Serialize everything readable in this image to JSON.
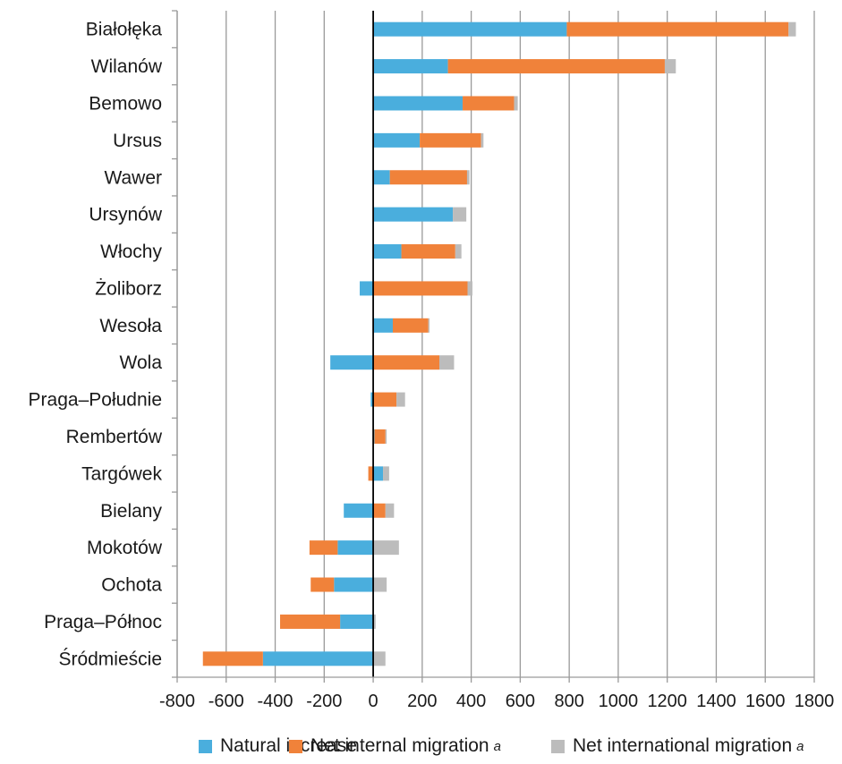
{
  "chart_data": {
    "type": "bar",
    "orientation": "horizontal",
    "stacked": true,
    "title": "",
    "xlabel": "",
    "ylabel": "",
    "xlim": [
      -800,
      1800
    ],
    "xticks": [
      -800,
      -600,
      -400,
      -200,
      0,
      200,
      400,
      600,
      800,
      1000,
      1200,
      1400,
      1600,
      1800
    ],
    "grid": "vertical",
    "legend_position": "bottom",
    "categories": [
      "Białołęka",
      "Wilanów",
      "Bemowo",
      "Ursus",
      "Wawer",
      "Ursynów",
      "Włochy",
      "Żoliborz",
      "Wesoła",
      "Wola",
      "Praga–Południe",
      "Rembertów",
      "Targówek",
      "Bielany",
      "Mokotów",
      "Ochota",
      "Praga–Północ",
      "Śródmieście"
    ],
    "series": [
      {
        "name": "Natural increase",
        "color": "#4aaedd",
        "values": [
          790,
          305,
          365,
          190,
          68,
          325,
          115,
          -55,
          80,
          -175,
          -10,
          5,
          40,
          -120,
          -145,
          -160,
          -135,
          -450
        ]
      },
      {
        "name": "Net internal migration",
        "name_superscript": "a",
        "color": "#f0823a",
        "values": [
          905,
          885,
          210,
          250,
          315,
          0,
          220,
          385,
          145,
          270,
          95,
          45,
          -20,
          50,
          -115,
          -95,
          -245,
          -245
        ]
      },
      {
        "name": "Net international migration",
        "name_superscript": "a",
        "color": "#bcbcbc",
        "values": [
          30,
          45,
          15,
          10,
          10,
          55,
          25,
          20,
          5,
          60,
          35,
          5,
          25,
          35,
          105,
          55,
          10,
          50
        ]
      }
    ]
  },
  "legend": {
    "items": [
      {
        "label": "Natural increase",
        "superscript": "",
        "color": "#4aaedd"
      },
      {
        "label": "Net internal migration",
        "superscript": "a",
        "color": "#f0823a"
      },
      {
        "label": "Net international migration",
        "superscript": "a",
        "color": "#bcbcbc"
      }
    ]
  }
}
